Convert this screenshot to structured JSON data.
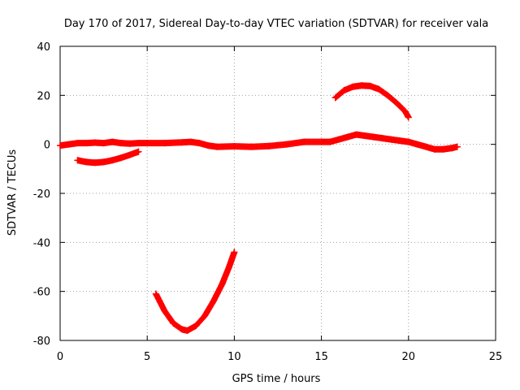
{
  "chart_data": {
    "type": "scatter",
    "title": "Day 170 of 2017, Sidereal Day-to-day VTEC variation (SDTVAR) for receiver vala",
    "xlabel": "GPS time / hours",
    "ylabel": "SDTVAR / TECUs",
    "xlim": [
      0,
      25
    ],
    "ylim": [
      -80,
      40
    ],
    "x_ticks": [
      0,
      5,
      10,
      15,
      20,
      25
    ],
    "y_ticks": [
      -80,
      -60,
      -40,
      -20,
      0,
      20,
      40
    ],
    "grid": true,
    "marker": "plus",
    "color": "#ff0000",
    "series": [
      {
        "name": "track-near-zero",
        "x": [
          0,
          0.5,
          1,
          1.5,
          2,
          2.5,
          3,
          3.5,
          4,
          4.5,
          5,
          6,
          7,
          7.5,
          8,
          8.5,
          9,
          10,
          11,
          12,
          13,
          14,
          15,
          15.5,
          16,
          16.5,
          17,
          17.5,
          18,
          18.5,
          19,
          19.5,
          20,
          20.5,
          21,
          21.5,
          22,
          22.5,
          22.8
        ],
        "y": [
          -0.5,
          0,
          0.5,
          0.5,
          0.7,
          0.5,
          1,
          0.5,
          0.3,
          0.5,
          0.5,
          0.5,
          0.8,
          1,
          0.5,
          -0.5,
          -1,
          -0.8,
          -1,
          -0.7,
          0,
          1,
          1,
          1,
          2,
          3,
          4,
          3.5,
          3,
          2.5,
          2,
          1.5,
          1,
          0,
          -1,
          -2,
          -2,
          -1.5,
          -1
        ]
      },
      {
        "name": "track-early-dip",
        "x": [
          1,
          1.5,
          2,
          2.5,
          3,
          3.5,
          4,
          4.5
        ],
        "y": [
          -6.5,
          -7.2,
          -7.5,
          -7.2,
          -6.5,
          -5.5,
          -4.3,
          -3
        ]
      },
      {
        "name": "track-deep-dip",
        "x": [
          5.5,
          6,
          6.5,
          7,
          7.3,
          7.8,
          8.3,
          8.8,
          9.3,
          9.7,
          10
        ],
        "y": [
          -61,
          -68,
          -73,
          -75.5,
          -76,
          -74,
          -70,
          -64,
          -57,
          -50,
          -44
        ]
      },
      {
        "name": "track-positive-arc",
        "x": [
          15.8,
          16.3,
          16.8,
          17.3,
          17.8,
          18.3,
          18.8,
          19.3,
          19.8,
          20
        ],
        "y": [
          19,
          22,
          23.5,
          24,
          23.8,
          22.5,
          20,
          17,
          13.5,
          11
        ]
      }
    ]
  }
}
